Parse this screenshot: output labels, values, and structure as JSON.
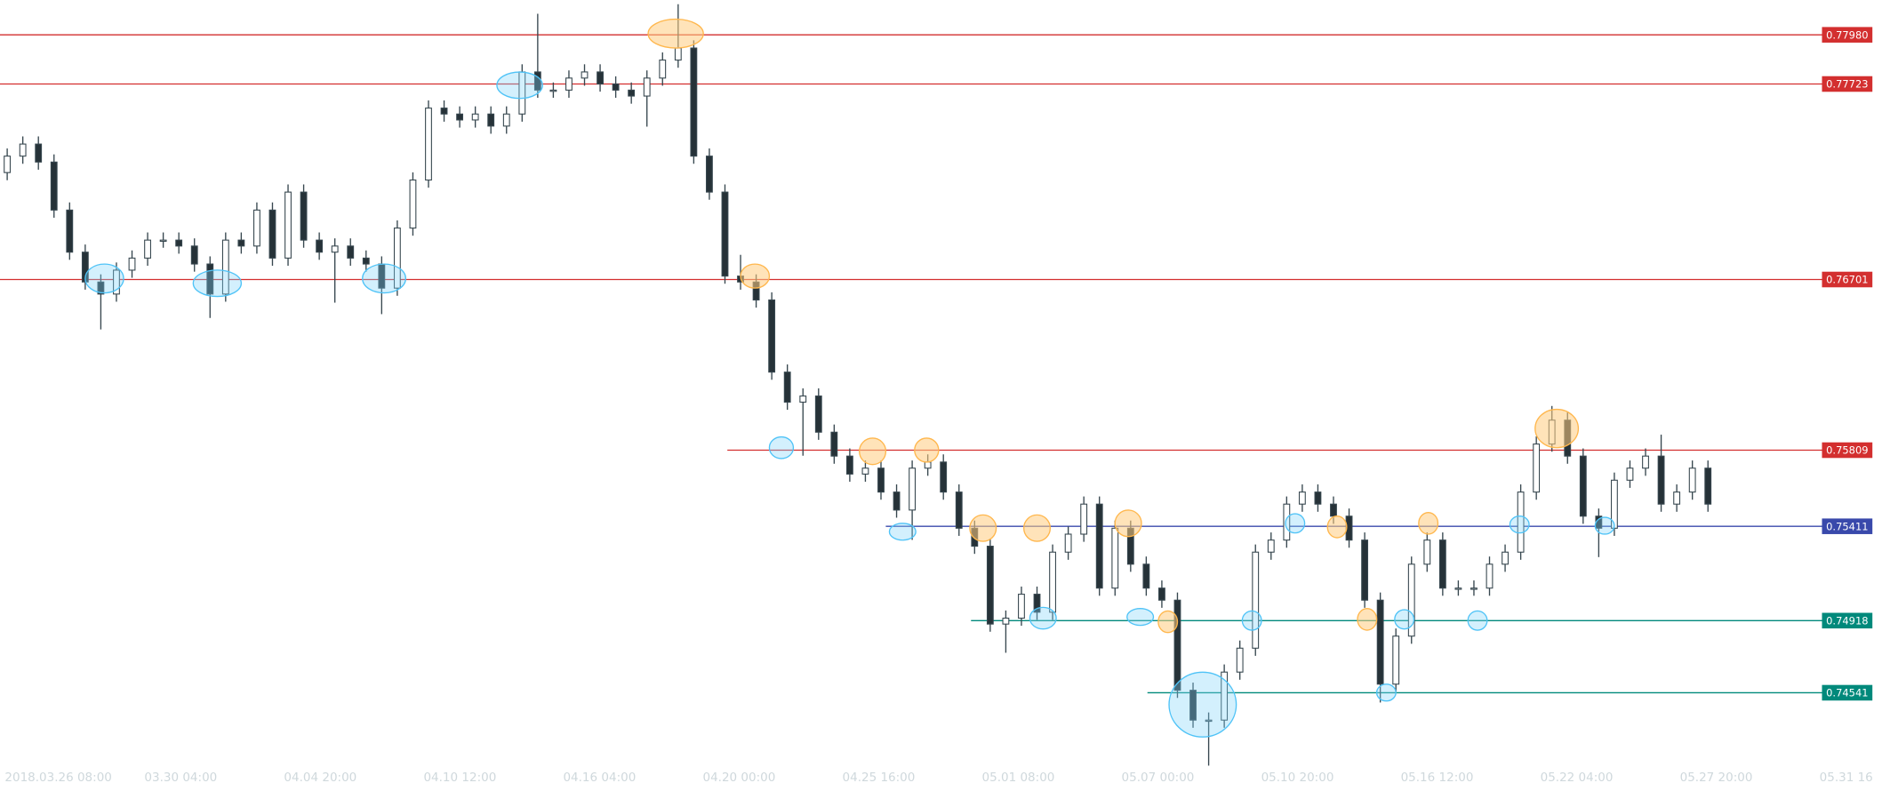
{
  "chart_data": {
    "type": "candlestick",
    "open": [
      0.7726,
      0.77346,
      0.77409,
      0.77315,
      0.77064,
      0.76844,
      0.76688,
      0.76625,
      0.7675,
      0.76813,
      0.76907,
      0.76907,
      0.76876,
      0.76782,
      0.76625,
      0.76907,
      0.76876,
      0.77064,
      0.76813,
      0.77158,
      0.76907,
      0.76844,
      0.76876,
      0.76813,
      0.76782,
      0.76656,
      0.7697,
      0.77221,
      0.77597,
      0.77566,
      0.77535,
      0.77566,
      0.77503,
      0.77566,
      0.77786,
      0.77691,
      0.77691,
      0.77754,
      0.77786,
      0.77723,
      0.77691,
      0.7766,
      0.77754,
      0.77848,
      0.77911,
      0.77346,
      0.77158,
      0.76719,
      0.76688,
      0.76594,
      0.76217,
      0.7606,
      0.76092,
      0.75903,
      0.75778,
      0.75684,
      0.75715,
      0.7559,
      0.75496,
      0.75715,
      0.75747,
      0.7559,
      0.75401,
      0.75307,
      0.749,
      0.74931,
      0.75056,
      0.74962,
      0.75276,
      0.7537,
      0.75527,
      0.75088,
      0.75401,
      0.75213,
      0.75088,
      0.75025,
      0.74554,
      0.74398,
      0.74398,
      0.74649,
      0.74774,
      0.75276,
      0.75339,
      0.75527,
      0.7559,
      0.75527,
      0.75464,
      0.75339,
      0.75025,
      0.74586,
      0.74837,
      0.75213,
      0.75339,
      0.75088,
      0.75088,
      0.75088,
      0.75213,
      0.75276,
      0.7559,
      0.75841,
      0.75966,
      0.75778,
      0.75464,
      0.75401,
      0.75652,
      0.75715,
      0.75778,
      0.75527,
      0.7559,
      0.75715
    ],
    "high": [
      0.77386,
      0.77449,
      0.77449,
      0.77355,
      0.77104,
      0.76884,
      0.76728,
      0.7679,
      0.76853,
      0.76947,
      0.76947,
      0.76947,
      0.76916,
      0.76822,
      0.76947,
      0.76947,
      0.77104,
      0.77104,
      0.77198,
      0.77198,
      0.76947,
      0.76916,
      0.76916,
      0.76853,
      0.76822,
      0.7701,
      0.77261,
      0.77637,
      0.77637,
      0.77606,
      0.77606,
      0.77606,
      0.77606,
      0.77826,
      0.7809,
      0.77731,
      0.77794,
      0.77826,
      0.77826,
      0.77763,
      0.77731,
      0.77794,
      0.77888,
      0.7814,
      0.77951,
      0.77386,
      0.77198,
      0.7683,
      0.76728,
      0.76634,
      0.76257,
      0.76132,
      0.76132,
      0.75943,
      0.75818,
      0.75755,
      0.75755,
      0.7563,
      0.75755,
      0.75787,
      0.75787,
      0.7563,
      0.75441,
      0.75347,
      0.74971,
      0.75096,
      0.75096,
      0.75316,
      0.7541,
      0.75567,
      0.75567,
      0.75441,
      0.75441,
      0.75253,
      0.75128,
      0.75065,
      0.74594,
      0.74438,
      0.74689,
      0.74814,
      0.75316,
      0.75379,
      0.75567,
      0.7563,
      0.7563,
      0.75567,
      0.75504,
      0.75379,
      0.75065,
      0.74877,
      0.75253,
      0.75379,
      0.75379,
      0.75128,
      0.75128,
      0.75253,
      0.75316,
      0.7563,
      0.75881,
      0.7604,
      0.76006,
      0.75818,
      0.75504,
      0.75692,
      0.75755,
      0.75818,
      0.7589,
      0.7563,
      0.75755,
      0.75755
    ],
    "low": [
      0.7722,
      0.77306,
      0.77275,
      0.77024,
      0.76804,
      0.76648,
      0.7644,
      0.76585,
      0.7671,
      0.76773,
      0.76867,
      0.76836,
      0.76742,
      0.765,
      0.76585,
      0.76836,
      0.76836,
      0.76773,
      0.76773,
      0.76867,
      0.76804,
      0.7658,
      0.76773,
      0.76742,
      0.7652,
      0.76616,
      0.7693,
      0.77181,
      0.77526,
      0.77495,
      0.77495,
      0.77463,
      0.77463,
      0.77526,
      0.77651,
      0.77651,
      0.77651,
      0.77714,
      0.77683,
      0.77651,
      0.7762,
      0.775,
      0.77714,
      0.77808,
      0.77306,
      0.77118,
      0.76679,
      0.76648,
      0.76554,
      0.76177,
      0.7602,
      0.7578,
      0.75863,
      0.75738,
      0.75644,
      0.75644,
      0.7555,
      0.75456,
      0.7534,
      0.75675,
      0.7555,
      0.75361,
      0.75267,
      0.7486,
      0.7475,
      0.74891,
      0.74922,
      0.74922,
      0.75236,
      0.7533,
      0.75048,
      0.75048,
      0.75173,
      0.75048,
      0.74985,
      0.74514,
      0.74358,
      0.7416,
      0.74358,
      0.74609,
      0.74734,
      0.75236,
      0.75299,
      0.75487,
      0.75487,
      0.75424,
      0.75299,
      0.74985,
      0.7449,
      0.74546,
      0.74797,
      0.75173,
      0.75048,
      0.75048,
      0.75048,
      0.75048,
      0.75173,
      0.75236,
      0.7555,
      0.75801,
      0.75738,
      0.75424,
      0.7525,
      0.75361,
      0.75612,
      0.75675,
      0.75487,
      0.75487,
      0.7555,
      0.75487
    ],
    "close": [
      0.77346,
      0.77409,
      0.77315,
      0.77064,
      0.76844,
      0.76688,
      0.76625,
      0.7675,
      0.76813,
      0.76907,
      0.76907,
      0.76876,
      0.76782,
      0.76625,
      0.76907,
      0.76876,
      0.77064,
      0.76813,
      0.77158,
      0.76907,
      0.76844,
      0.76876,
      0.76813,
      0.76782,
      0.76656,
      0.7697,
      0.77221,
      0.77597,
      0.77566,
      0.77535,
      0.77566,
      0.77503,
      0.77566,
      0.77786,
      0.77691,
      0.77691,
      0.77754,
      0.77786,
      0.77723,
      0.77691,
      0.7766,
      0.77754,
      0.77848,
      0.77911,
      0.77346,
      0.77158,
      0.76719,
      0.76688,
      0.76594,
      0.76217,
      0.7606,
      0.76092,
      0.75903,
      0.75778,
      0.75684,
      0.75715,
      0.7559,
      0.75496,
      0.75715,
      0.75747,
      0.7559,
      0.75401,
      0.75307,
      0.749,
      0.74931,
      0.75056,
      0.74962,
      0.75276,
      0.7537,
      0.75527,
      0.75088,
      0.75401,
      0.75213,
      0.75088,
      0.75025,
      0.74554,
      0.74398,
      0.74398,
      0.74649,
      0.74774,
      0.75276,
      0.75339,
      0.75527,
      0.7559,
      0.75527,
      0.75464,
      0.75339,
      0.75025,
      0.74586,
      0.74837,
      0.75213,
      0.75339,
      0.75088,
      0.75088,
      0.75088,
      0.75213,
      0.75276,
      0.7559,
      0.75841,
      0.75966,
      0.75778,
      0.75464,
      0.75401,
      0.75652,
      0.75715,
      0.75778,
      0.75527,
      0.7559,
      0.75715,
      0.75527
    ],
    "up_color": "#ffffff",
    "down_color": "#263238",
    "wick_color": "#37474f",
    "ylim": [
      0.74178,
      0.78162
    ],
    "levels": [
      {
        "value": 0.7798,
        "label": "0.77980",
        "color": "#d32f2f"
      },
      {
        "value": 0.77723,
        "label": "0.77723",
        "color": "#d32f2f"
      },
      {
        "value": 0.76701,
        "label": "0.76701",
        "color": "#d32f2f"
      },
      {
        "value": 0.75809,
        "label": "0.75809",
        "color": "#d32f2f"
      },
      {
        "value": 0.75411,
        "label": "0.75411",
        "color": "#3949ab"
      },
      {
        "value": 0.74918,
        "label": "0.74918",
        "color": "#00897b"
      },
      {
        "value": 0.74541,
        "label": "0.74541",
        "color": "#00897b"
      }
    ],
    "x_labels": [
      "2018.03.26  08:00",
      "03.30  04:00",
      "04.04  20:00",
      "04.10  12:00",
      "04.16  04:00",
      "04.20  00:00",
      "04.25  16:00",
      "05.01  08:00",
      "05.07  00:00",
      "05.10  20:00",
      "05.16  12:00",
      "05.22  04:00",
      "05.27  20:00",
      "05.31  16"
    ]
  }
}
